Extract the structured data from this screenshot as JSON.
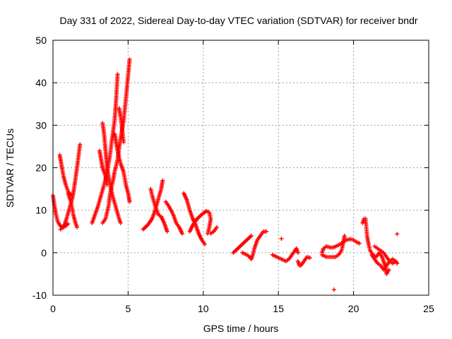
{
  "chart_data": {
    "type": "scatter",
    "title": "Day 331 of 2022, Sidereal Day-to-day VTEC variation (SDTVAR) for receiver bndr",
    "xlabel": "GPS time / hours",
    "ylabel": "SDTVAR / TECUs",
    "xlim": [
      0,
      25
    ],
    "ylim": [
      -10,
      50
    ],
    "xticks": [
      0,
      5,
      10,
      15,
      20,
      25
    ],
    "yticks": [
      -10,
      0,
      10,
      20,
      30,
      40,
      50
    ],
    "grid": true,
    "marker": "+",
    "series_color": "#ff0000",
    "tracks": [
      [
        [
          0.0,
          13.5
        ],
        [
          0.1,
          11
        ],
        [
          0.2,
          9
        ],
        [
          0.3,
          7.5
        ],
        [
          0.45,
          6.5
        ],
        [
          0.6,
          6
        ],
        [
          0.8,
          6.2
        ],
        [
          1.0,
          6.8
        ]
      ],
      [
        [
          0.45,
          23
        ],
        [
          0.55,
          21
        ],
        [
          0.7,
          18
        ],
        [
          0.85,
          16
        ],
        [
          1.0,
          14.5
        ],
        [
          1.2,
          13.5
        ]
      ],
      [
        [
          0.5,
          5.5
        ],
        [
          0.7,
          6
        ],
        [
          0.9,
          8
        ],
        [
          1.1,
          10.5
        ],
        [
          1.3,
          13
        ],
        [
          1.4,
          15
        ],
        [
          1.6,
          20
        ],
        [
          1.8,
          25.5
        ]
      ],
      [
        [
          1.0,
          14
        ],
        [
          1.2,
          12
        ],
        [
          1.35,
          9
        ],
        [
          1.5,
          7
        ],
        [
          1.6,
          6
        ]
      ],
      [
        [
          2.6,
          7
        ],
        [
          2.8,
          9
        ],
        [
          3.0,
          11
        ],
        [
          3.2,
          13.5
        ],
        [
          3.4,
          16
        ],
        [
          3.6,
          19
        ],
        [
          3.8,
          23
        ],
        [
          3.9,
          26
        ],
        [
          4.1,
          31
        ],
        [
          4.2,
          36
        ],
        [
          4.3,
          42
        ]
      ],
      [
        [
          3.1,
          24
        ],
        [
          3.2,
          22
        ],
        [
          3.3,
          20
        ],
        [
          3.5,
          18
        ],
        [
          3.6,
          16
        ]
      ],
      [
        [
          3.3,
          30.5
        ],
        [
          3.4,
          28
        ],
        [
          3.5,
          24
        ],
        [
          3.6,
          20
        ],
        [
          3.8,
          16
        ],
        [
          4.0,
          13
        ],
        [
          4.2,
          10.5
        ],
        [
          4.4,
          8
        ],
        [
          4.5,
          7
        ]
      ],
      [
        [
          3.3,
          7
        ],
        [
          3.5,
          8
        ],
        [
          3.7,
          11
        ],
        [
          3.8,
          14
        ],
        [
          4.0,
          17
        ],
        [
          4.1,
          19
        ],
        [
          4.3,
          22
        ],
        [
          4.5,
          27
        ],
        [
          4.7,
          31
        ],
        [
          4.9,
          38
        ],
        [
          5.1,
          45.5
        ]
      ],
      [
        [
          4.1,
          28
        ],
        [
          4.2,
          26
        ],
        [
          4.3,
          24
        ],
        [
          4.5,
          21
        ],
        [
          4.7,
          19
        ],
        [
          4.85,
          16
        ],
        [
          5.0,
          14
        ],
        [
          5.1,
          12
        ]
      ],
      [
        [
          4.4,
          34
        ],
        [
          4.5,
          32
        ],
        [
          4.6,
          29
        ],
        [
          4.7,
          26
        ]
      ],
      [
        [
          6.0,
          5.5
        ],
        [
          6.3,
          6.5
        ],
        [
          6.6,
          8
        ],
        [
          6.8,
          10
        ],
        [
          7.0,
          12.5
        ],
        [
          7.2,
          15
        ],
        [
          7.3,
          17
        ]
      ],
      [
        [
          6.5,
          15
        ],
        [
          6.6,
          13.5
        ],
        [
          6.8,
          11
        ],
        [
          7.0,
          9
        ],
        [
          7.2,
          8.5
        ],
        [
          7.4,
          7
        ],
        [
          7.6,
          5
        ]
      ],
      [
        [
          7.5,
          12
        ],
        [
          7.7,
          11
        ],
        [
          8.0,
          9
        ],
        [
          8.2,
          7
        ],
        [
          8.4,
          6
        ],
        [
          8.6,
          4.5
        ]
      ],
      [
        [
          8.7,
          14
        ],
        [
          8.9,
          12.5
        ],
        [
          9.1,
          10
        ],
        [
          9.3,
          8
        ],
        [
          9.5,
          6.5
        ],
        [
          9.7,
          4.5
        ],
        [
          9.9,
          3
        ],
        [
          10.1,
          2
        ]
      ],
      [
        [
          9.1,
          5
        ],
        [
          9.3,
          6.5
        ],
        [
          9.6,
          8
        ],
        [
          9.9,
          9
        ],
        [
          10.2,
          9.8
        ],
        [
          10.4,
          9.5
        ],
        [
          10.5,
          8
        ],
        [
          10.4,
          6
        ],
        [
          10.3,
          4.5
        ]
      ],
      [
        [
          10.5,
          4.5
        ],
        [
          10.7,
          5
        ],
        [
          10.9,
          6
        ]
      ],
      [
        [
          12.0,
          0
        ],
        [
          12.3,
          1
        ],
        [
          12.6,
          2
        ],
        [
          12.9,
          3
        ],
        [
          13.2,
          4
        ]
      ],
      [
        [
          12.6,
          0
        ],
        [
          12.9,
          -0.5
        ],
        [
          13.1,
          -1
        ],
        [
          13.2,
          -1.5
        ],
        [
          13.3,
          -0.5
        ],
        [
          13.4,
          1
        ],
        [
          13.5,
          2
        ],
        [
          13.6,
          3
        ],
        [
          13.8,
          4
        ],
        [
          14.0,
          5
        ],
        [
          14.2,
          5
        ]
      ],
      [
        [
          15.2,
          3.3
        ]
      ],
      [
        [
          14.6,
          -0.5
        ],
        [
          14.9,
          -1
        ],
        [
          15.2,
          -1.5
        ],
        [
          15.5,
          -2
        ],
        [
          15.7,
          -1.5
        ],
        [
          15.9,
          -0.5
        ],
        [
          16.1,
          0.5
        ],
        [
          16.2,
          1
        ],
        [
          16.3,
          0
        ]
      ],
      [
        [
          16.3,
          -2
        ],
        [
          16.4,
          -3
        ],
        [
          16.5,
          -3
        ],
        [
          16.7,
          -2
        ],
        [
          16.9,
          -1
        ],
        [
          17.1,
          -1.2
        ]
      ],
      [
        [
          17.9,
          0
        ],
        [
          18.0,
          1
        ],
        [
          18.2,
          1.5
        ],
        [
          18.5,
          1.2
        ],
        [
          18.7,
          1.3
        ],
        [
          19.0,
          1.8
        ],
        [
          19.3,
          2.5
        ],
        [
          19.5,
          3
        ],
        [
          19.8,
          3.2
        ],
        [
          20.0,
          3.0
        ],
        [
          20.2,
          2.5
        ],
        [
          20.4,
          2.2
        ]
      ],
      [
        [
          17.9,
          -0.5
        ],
        [
          18.2,
          -1
        ],
        [
          18.5,
          -1
        ],
        [
          18.8,
          -1
        ],
        [
          19.0,
          -0.5
        ],
        [
          19.2,
          0.5
        ],
        [
          19.3,
          2
        ],
        [
          19.4,
          4
        ]
      ],
      [
        [
          18.7,
          -8.7
        ]
      ],
      [
        [
          20.6,
          7
        ],
        [
          20.7,
          8
        ],
        [
          20.8,
          8
        ],
        [
          20.85,
          6
        ],
        [
          20.9,
          4
        ],
        [
          21.0,
          2
        ],
        [
          21.1,
          0.5
        ],
        [
          21.3,
          -0.5
        ],
        [
          21.5,
          -1
        ],
        [
          21.7,
          0
        ],
        [
          21.9,
          -1
        ],
        [
          22.1,
          -3
        ],
        [
          22.2,
          -5
        ],
        [
          22.35,
          -4
        ]
      ],
      [
        [
          21.4,
          1.5
        ],
        [
          21.6,
          1
        ],
        [
          21.8,
          0.5
        ],
        [
          22.0,
          0
        ],
        [
          22.2,
          -1
        ],
        [
          22.4,
          -2
        ],
        [
          22.6,
          -2.5
        ],
        [
          22.8,
          -2
        ]
      ],
      [
        [
          21.2,
          -0.5
        ],
        [
          21.4,
          -1.5
        ],
        [
          21.6,
          -2.5
        ],
        [
          21.8,
          -3
        ],
        [
          22.0,
          -4
        ],
        [
          22.2,
          -3
        ],
        [
          22.4,
          -2
        ],
        [
          22.6,
          -1.5
        ],
        [
          22.8,
          -2
        ],
        [
          22.9,
          -2.5
        ]
      ],
      [
        [
          22.9,
          4.4
        ]
      ]
    ]
  }
}
